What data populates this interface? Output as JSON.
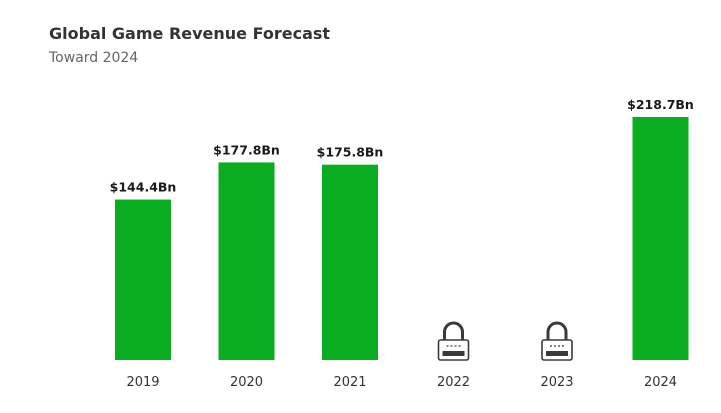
{
  "chart_data": {
    "type": "bar",
    "title": "Global Game Revenue Forecast",
    "subtitle": "Toward 2024",
    "categories": [
      "2019",
      "2020",
      "2021",
      "2022",
      "2023",
      "2024"
    ],
    "values": [
      144.4,
      177.8,
      175.8,
      null,
      null,
      218.7
    ],
    "value_labels": [
      "$144.4Bn",
      "$177.8Bn",
      "$175.8Bn",
      "",
      "",
      "$218.7Bn"
    ],
    "locked": [
      false,
      false,
      false,
      true,
      true,
      false
    ],
    "locked_icon": "padlock-icon",
    "unit": "Bn",
    "ylim": [
      0,
      218.7
    ],
    "grid": false,
    "legend": "none",
    "colors": {
      "bar": "#0aad1f",
      "lock": "#3a3a3a",
      "label": "#1a1a1a",
      "tick": "#333333"
    }
  }
}
